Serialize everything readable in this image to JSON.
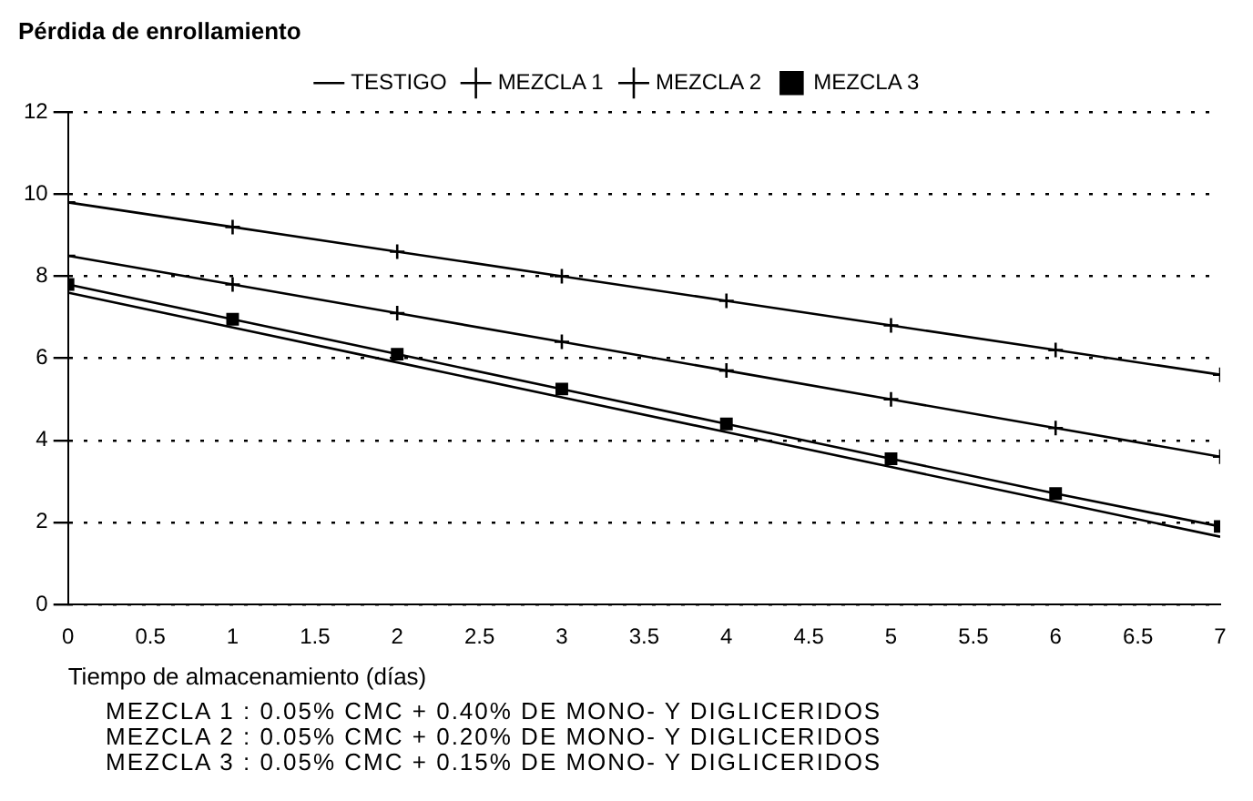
{
  "chart_data": {
    "type": "line",
    "title": "Pérdida de enrollamiento",
    "xlabel": "Tiempo de almacenamiento (días)",
    "x": [
      0,
      1,
      2,
      3,
      4,
      5,
      6,
      7
    ],
    "series": [
      {
        "name": "TESTIGO",
        "color": "#000000",
        "marker": "none",
        "values": [
          7.6,
          6.75,
          5.9,
          5.05,
          4.2,
          3.35,
          2.5,
          1.65
        ]
      },
      {
        "name": "MEZCLA 1",
        "color": "#000000",
        "marker": "cross",
        "values": [
          8.5,
          7.8,
          7.1,
          6.4,
          5.7,
          5.0,
          4.3,
          3.6
        ]
      },
      {
        "name": "MEZCLA 2",
        "color": "#000000",
        "marker": "cross",
        "values": [
          9.8,
          9.2,
          8.6,
          8.0,
          7.4,
          6.8,
          6.2,
          5.6
        ]
      },
      {
        "name": "MEZCLA 3",
        "color": "#000000",
        "marker": "square",
        "values": [
          7.8,
          6.95,
          6.1,
          5.25,
          4.4,
          3.55,
          2.7,
          1.9
        ]
      }
    ],
    "xlim": [
      0,
      7
    ],
    "xticks": [
      0,
      0.5,
      1,
      1.5,
      2,
      2.5,
      3,
      3.5,
      4,
      4.5,
      5,
      5.5,
      6,
      6.5,
      7
    ],
    "ylim": [
      0,
      12
    ],
    "yticks": [
      0,
      2,
      4,
      6,
      8,
      10,
      12
    ],
    "grid": "y",
    "legend": "top",
    "line_style": "solid",
    "annotations": [
      "MEZCLA 1 : 0.05% CMC + 0.40% DE MONO- Y DIGLICERIDOS",
      "MEZCLA 2 : 0.05% CMC + 0.20% DE MONO- Y DIGLICERIDOS",
      "MEZCLA 3 : 0.05% CMC + 0.15% DE MONO- Y DIGLICERIDOS"
    ]
  }
}
